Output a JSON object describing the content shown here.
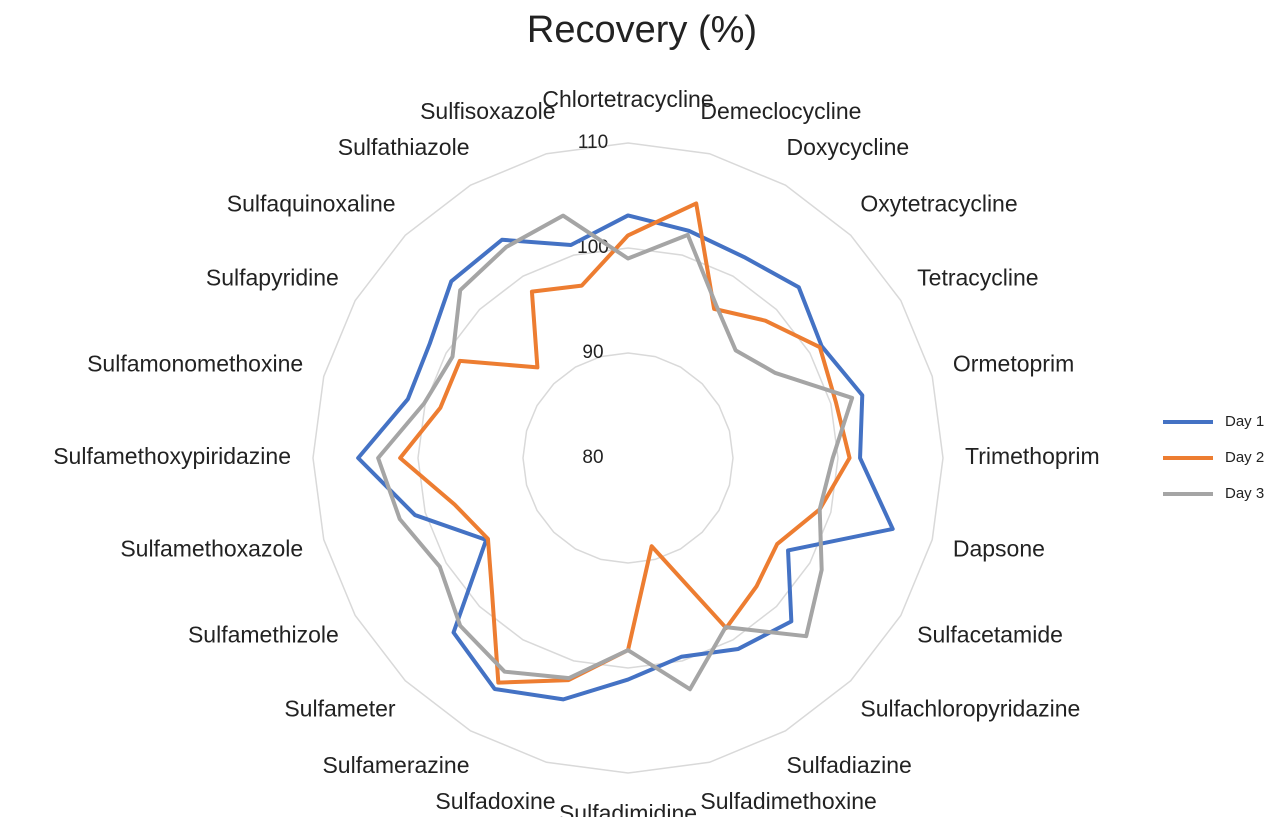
{
  "chart_data": {
    "type": "radar",
    "title": "Recovery (%)",
    "categories": [
      "Chlortetracycline",
      "Demeclocycline",
      "Doxycycline",
      "Oxytetracycline",
      "Tetracycline",
      "Ormetoprim",
      "Trimethoprim",
      "Dapsone",
      "Sulfacetamide",
      "Sulfachloropyridazine",
      "Sulfadiazine",
      "Sulfadimethoxine",
      "Sulfadimidine",
      "Sulfadoxine",
      "Sulfamerazine",
      "Sulfameter",
      "Sulfamethizole",
      "Sulfamethoxazole",
      "Sulfamethoxypiridazine",
      "Sulfamonomethoxine",
      "Sulfapyridine",
      "Sulfaquinoxaline",
      "Sulfathiazole",
      "Sulfisoxazole"
    ],
    "series": [
      {
        "name": "Day 1",
        "color": "#4472c4",
        "values": [
          103.1,
          102.4,
          102.1,
          103.0,
          101.3,
          103.1,
          102.1,
          106.1,
          97.6,
          102.0,
          101.0,
          99.6,
          101.1,
          103.8,
          105.4,
          103.5,
          95.6,
          101.0,
          105.7,
          101.7,
          101.8,
          103.8,
          104.0,
          101.0
        ]
      },
      {
        "name": "Day 2",
        "color": "#ed7d31",
        "values": [
          101.2,
          105.1,
          96.4,
          98.5,
          101.1,
          100.5,
          101.1,
          98.9,
          96.4,
          97.3,
          98.7,
          88.7,
          98.3,
          101.9,
          104.7,
          98.3,
          95.4,
          97.1,
          101.7,
          98.5,
          98.5,
          92.2,
          98.3,
          97.0
        ]
      },
      {
        "name": "Day 3",
        "color": "#a5a5a5",
        "values": [
          99.0,
          102.0,
          96.8,
          94.5,
          96.2,
          102.1,
          99.5,
          98.9,
          101.3,
          104.0,
          98.6,
          102.8,
          98.3,
          101.7,
          103.5,
          102.6,
          100.7,
          102.5,
          103.8,
          100.1,
          99.3,
          102.6,
          103.2,
          103.9
        ]
      }
    ],
    "rlim": [
      80,
      110
    ],
    "rticks": [
      80,
      90,
      100,
      110
    ],
    "grid": true,
    "legend": "right"
  }
}
